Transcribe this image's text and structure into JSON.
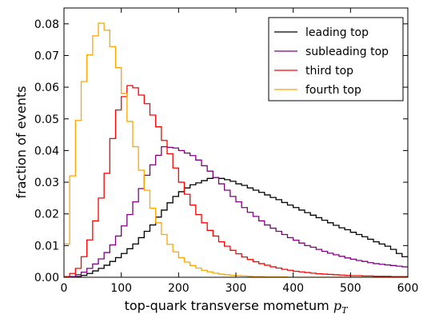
{
  "chart_data": {
    "type": "line",
    "drawstyle": "steps",
    "xlabel": "top-quark transverse mometum",
    "xlabel_symbol": "p",
    "xlabel_symbol_sub": "T",
    "ylabel": "fraction of events",
    "xlim": [
      0,
      600
    ],
    "ylim": [
      0,
      0.085
    ],
    "x_ticks": [
      0,
      100,
      200,
      300,
      400,
      500,
      600
    ],
    "y_ticks": [
      0.0,
      0.01,
      0.02,
      0.03,
      0.04,
      0.05,
      0.06,
      0.07,
      0.08
    ],
    "x_tick_labels": [
      "0",
      "100",
      "200",
      "300",
      "400",
      "500",
      "600"
    ],
    "y_tick_labels": [
      "0.00",
      "0.01",
      "0.02",
      "0.03",
      "0.04",
      "0.05",
      "0.06",
      "0.07",
      "0.08"
    ],
    "grid": false,
    "legend_position": "top-right",
    "bin_width": 10,
    "series": [
      {
        "name": "leading top",
        "color": "#000000",
        "values": [
          0,
          0,
          0.0002,
          0.0006,
          0.0012,
          0.002,
          0.0028,
          0.0038,
          0.005,
          0.0062,
          0.0075,
          0.009,
          0.0105,
          0.0125,
          0.0145,
          0.0165,
          0.019,
          0.0212,
          0.0235,
          0.0255,
          0.027,
          0.0282,
          0.0292,
          0.0298,
          0.0305,
          0.0312,
          0.0315,
          0.0312,
          0.0308,
          0.0303,
          0.0295,
          0.029,
          0.0282,
          0.0275,
          0.0268,
          0.026,
          0.0252,
          0.0245,
          0.0236,
          0.0228,
          0.022,
          0.0212,
          0.0204,
          0.0196,
          0.0188,
          0.018,
          0.0172,
          0.0164,
          0.0156,
          0.015,
          0.0142,
          0.0135,
          0.0128,
          0.012,
          0.0112,
          0.0105,
          0.0098,
          0.0088,
          0.0075,
          0.0065
        ]
      },
      {
        "name": "subleading top",
        "color": "#800080",
        "values": [
          0,
          0.0002,
          0.0008,
          0.0016,
          0.0028,
          0.0042,
          0.0058,
          0.0078,
          0.0102,
          0.013,
          0.0162,
          0.0198,
          0.0238,
          0.028,
          0.0322,
          0.0355,
          0.0385,
          0.0412,
          0.041,
          0.0408,
          0.04,
          0.0392,
          0.0384,
          0.037,
          0.0352,
          0.0335,
          0.0315,
          0.0295,
          0.0275,
          0.0255,
          0.0238,
          0.022,
          0.0205,
          0.0192,
          0.0178,
          0.0165,
          0.0155,
          0.0145,
          0.0135,
          0.0125,
          0.0117,
          0.0108,
          0.01,
          0.0095,
          0.0088,
          0.0082,
          0.0076,
          0.0071,
          0.0066,
          0.0061,
          0.0057,
          0.0053,
          0.005,
          0.0046,
          0.0043,
          0.0041,
          0.0039,
          0.0037,
          0.0035,
          0.0033
        ]
      },
      {
        "name": "third top",
        "color": "#ff0000",
        "values": [
          0.0002,
          0.0012,
          0.0028,
          0.0065,
          0.0118,
          0.0178,
          0.025,
          0.0328,
          0.0438,
          0.0528,
          0.057,
          0.0605,
          0.0598,
          0.0575,
          0.0548,
          0.0512,
          0.0475,
          0.0432,
          0.039,
          0.0345,
          0.03,
          0.0262,
          0.0228,
          0.0198,
          0.0172,
          0.0148,
          0.013,
          0.0112,
          0.0098,
          0.0085,
          0.0074,
          0.0064,
          0.0056,
          0.0049,
          0.0043,
          0.0038,
          0.0033,
          0.0029,
          0.0025,
          0.0022,
          0.0019,
          0.0017,
          0.0015,
          0.0013,
          0.0011,
          0.001,
          0.0009,
          0.0008,
          0.0007,
          0.0006,
          0.0005,
          0.0005,
          0.0004,
          0.0004,
          0.0003,
          0.0003,
          0.0003,
          0.0002,
          0.0002,
          0.0002
        ]
      },
      {
        "name": "fourth top",
        "color": "#ffa500",
        "values": [
          0.0105,
          0.032,
          0.0495,
          0.0618,
          0.0702,
          0.0762,
          0.0802,
          0.078,
          0.0728,
          0.0662,
          0.058,
          0.0492,
          0.0412,
          0.0338,
          0.0275,
          0.0218,
          0.0172,
          0.0135,
          0.0104,
          0.008,
          0.0062,
          0.0048,
          0.0037,
          0.0029,
          0.0022,
          0.0017,
          0.0013,
          0.001,
          0.0008,
          0.0006,
          0.0005,
          0.0004,
          0.0003,
          0.0002,
          0.0002,
          0.0001,
          0.0001,
          0.0001,
          0.0001,
          0,
          0,
          0,
          0,
          0,
          0,
          0,
          0,
          0,
          0,
          0,
          0,
          0,
          0,
          0,
          0,
          0,
          0,
          0,
          0,
          0
        ]
      }
    ]
  }
}
